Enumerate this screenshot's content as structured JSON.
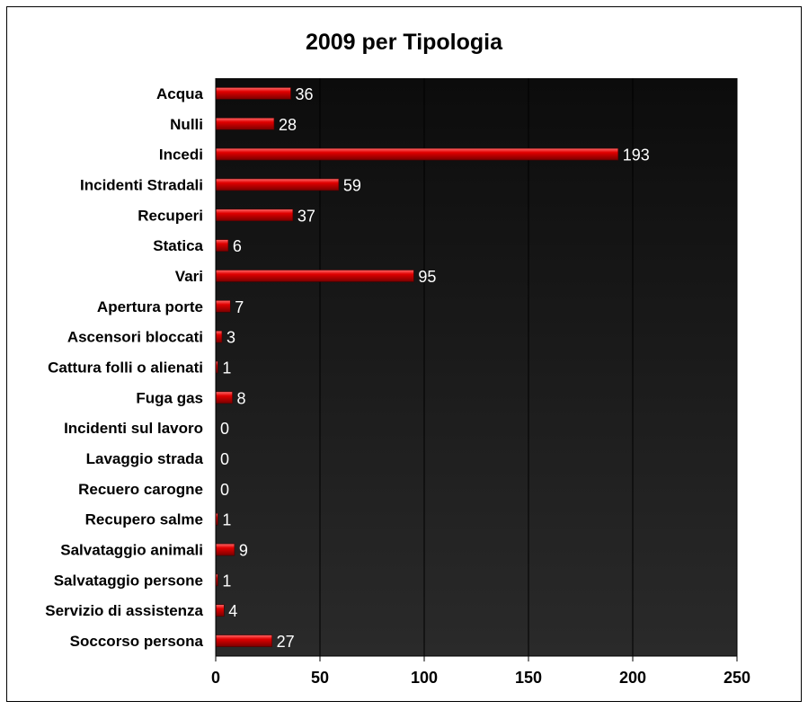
{
  "chart_data": {
    "type": "bar",
    "orientation": "horizontal",
    "title": "2009 per Tipologia",
    "categories": [
      "Acqua",
      "Nulli",
      "Incedi",
      "Incidenti Stradali",
      "Recuperi",
      "Statica",
      "Vari",
      "Apertura porte",
      "Ascensori bloccati",
      "Cattura folli o alienati",
      "Fuga gas",
      "Incidenti sul lavoro",
      "Lavaggio strada",
      "Recuero carogne",
      "Recupero salme",
      "Salvataggio animali",
      "Salvataggio persone",
      "Servizio di assistenza",
      "Soccorso persona"
    ],
    "values": [
      36,
      28,
      193,
      59,
      37,
      6,
      95,
      7,
      3,
      1,
      8,
      0,
      0,
      0,
      1,
      9,
      1,
      4,
      27
    ],
    "xlim": [
      0,
      250
    ],
    "xticks": [
      "0",
      "50",
      "100",
      "150",
      "200",
      "250"
    ],
    "grid": "vertical",
    "data_labels": true,
    "colors": {
      "bar": "#e00000",
      "plot_bg": "#1a1a1a",
      "grid": "#000000"
    }
  }
}
